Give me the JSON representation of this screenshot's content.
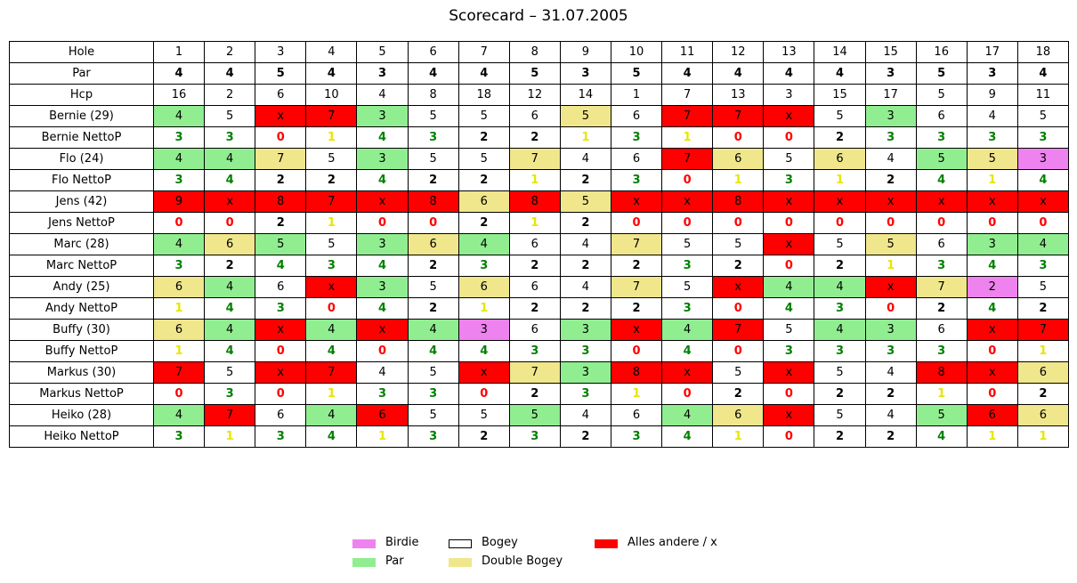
{
  "title": "Scorecard – 31.07.2005",
  "colors": {
    "Birdie": "#ee82ee",
    "Par": "#90ee90",
    "Bogey": "#ffffff",
    "Double Bogey": "#f0e68c",
    "Alles andere / x": "#ff0000",
    "netto": {
      "0": "#ff0000",
      "1": "#e6e600",
      "2": "#000000",
      "3": "#008000",
      "4": "#008000"
    }
  },
  "legend": [
    {
      "label": "Birdie",
      "key": "Birdie"
    },
    {
      "label": "Par",
      "key": "Par"
    },
    {
      "label": "Bogey",
      "key": "Bogey"
    },
    {
      "label": "Double Bogey",
      "key": "Double Bogey"
    },
    {
      "label": "Alles andere / x",
      "key": "Alles andere / x"
    }
  ],
  "chart_data": {
    "type": "table",
    "title": "Scorecard – 31.07.2005",
    "header": {
      "label": "Hole",
      "values": [
        "1",
        "2",
        "3",
        "4",
        "5",
        "6",
        "7",
        "8",
        "9",
        "10",
        "11",
        "12",
        "13",
        "14",
        "15",
        "16",
        "17",
        "18"
      ]
    },
    "par": {
      "label": "Par",
      "values": [
        "4",
        "4",
        "5",
        "4",
        "3",
        "4",
        "4",
        "5",
        "3",
        "5",
        "4",
        "4",
        "4",
        "4",
        "3",
        "5",
        "3",
        "4"
      ]
    },
    "hcp": {
      "label": "Hcp",
      "values": [
        "16",
        "2",
        "6",
        "10",
        "4",
        "8",
        "18",
        "12",
        "14",
        "1",
        "7",
        "13",
        "3",
        "15",
        "17",
        "5",
        "9",
        "11"
      ]
    },
    "players": [
      {
        "name": "Bernie (29)",
        "strokes": [
          "4",
          "5",
          "x",
          "7",
          "3",
          "5",
          "5",
          "6",
          "5",
          "6",
          "7",
          "7",
          "x",
          "5",
          "3",
          "6",
          "4",
          "5"
        ],
        "cats": [
          "Par",
          "Bogey",
          "Alles andere / x",
          "Alles andere / x",
          "Par",
          "Bogey",
          "Bogey",
          "Bogey",
          "Double Bogey",
          "Bogey",
          "Alles andere / x",
          "Alles andere / x",
          "Alles andere / x",
          "Bogey",
          "Par",
          "Bogey",
          "Bogey",
          "Bogey"
        ],
        "netto_label": "Bernie NettoP",
        "netto": [
          "3",
          "3",
          "0",
          "1",
          "4",
          "3",
          "2",
          "2",
          "1",
          "3",
          "1",
          "0",
          "0",
          "2",
          "3",
          "3",
          "3",
          "3"
        ]
      },
      {
        "name": "Flo (24)",
        "strokes": [
          "4",
          "4",
          "7",
          "5",
          "3",
          "5",
          "5",
          "7",
          "4",
          "6",
          "7",
          "6",
          "5",
          "6",
          "4",
          "5",
          "5",
          "3"
        ],
        "cats": [
          "Par",
          "Par",
          "Double Bogey",
          "Bogey",
          "Par",
          "Bogey",
          "Bogey",
          "Double Bogey",
          "Bogey",
          "Bogey",
          "Alles andere / x",
          "Double Bogey",
          "Bogey",
          "Double Bogey",
          "Bogey",
          "Par",
          "Double Bogey",
          "Birdie"
        ],
        "netto_label": "Flo NettoP",
        "netto": [
          "3",
          "4",
          "2",
          "2",
          "4",
          "2",
          "2",
          "1",
          "2",
          "3",
          "0",
          "1",
          "3",
          "1",
          "2",
          "4",
          "1",
          "4"
        ]
      },
      {
        "name": "Jens (42)",
        "strokes": [
          "9",
          "x",
          "8",
          "7",
          "x",
          "8",
          "6",
          "8",
          "5",
          "x",
          "x",
          "8",
          "x",
          "x",
          "x",
          "x",
          "x",
          "x"
        ],
        "cats": [
          "Alles andere / x",
          "Alles andere / x",
          "Alles andere / x",
          "Alles andere / x",
          "Alles andere / x",
          "Alles andere / x",
          "Double Bogey",
          "Alles andere / x",
          "Double Bogey",
          "Alles andere / x",
          "Alles andere / x",
          "Alles andere / x",
          "Alles andere / x",
          "Alles andere / x",
          "Alles andere / x",
          "Alles andere / x",
          "Alles andere / x",
          "Alles andere / x"
        ],
        "netto_label": "Jens NettoP",
        "netto": [
          "0",
          "0",
          "2",
          "1",
          "0",
          "0",
          "2",
          "1",
          "2",
          "0",
          "0",
          "0",
          "0",
          "0",
          "0",
          "0",
          "0",
          "0"
        ]
      },
      {
        "name": "Marc (28)",
        "strokes": [
          "4",
          "6",
          "5",
          "5",
          "3",
          "6",
          "4",
          "6",
          "4",
          "7",
          "5",
          "5",
          "x",
          "5",
          "5",
          "6",
          "3",
          "4"
        ],
        "cats": [
          "Par",
          "Double Bogey",
          "Par",
          "Bogey",
          "Par",
          "Double Bogey",
          "Par",
          "Bogey",
          "Bogey",
          "Double Bogey",
          "Bogey",
          "Bogey",
          "Alles andere / x",
          "Bogey",
          "Double Bogey",
          "Bogey",
          "Par",
          "Par"
        ],
        "netto_label": "Marc NettoP",
        "netto": [
          "3",
          "2",
          "4",
          "3",
          "4",
          "2",
          "3",
          "2",
          "2",
          "2",
          "3",
          "2",
          "0",
          "2",
          "1",
          "3",
          "4",
          "3"
        ]
      },
      {
        "name": "Andy (25)",
        "strokes": [
          "6",
          "4",
          "6",
          "x",
          "3",
          "5",
          "6",
          "6",
          "4",
          "7",
          "5",
          "x",
          "4",
          "4",
          "x",
          "7",
          "2",
          "5"
        ],
        "cats": [
          "Double Bogey",
          "Par",
          "Bogey",
          "Alles andere / x",
          "Par",
          "Bogey",
          "Double Bogey",
          "Bogey",
          "Bogey",
          "Double Bogey",
          "Bogey",
          "Alles andere / x",
          "Par",
          "Par",
          "Alles andere / x",
          "Double Bogey",
          "Birdie",
          "Bogey"
        ],
        "netto_label": "Andy NettoP",
        "netto": [
          "1",
          "4",
          "3",
          "0",
          "4",
          "2",
          "1",
          "2",
          "2",
          "2",
          "3",
          "0",
          "4",
          "3",
          "0",
          "2",
          "4",
          "2"
        ]
      },
      {
        "name": "Buffy (30)",
        "strokes": [
          "6",
          "4",
          "x",
          "4",
          "x",
          "4",
          "3",
          "6",
          "3",
          "x",
          "4",
          "7",
          "5",
          "4",
          "3",
          "6",
          "x",
          "7"
        ],
        "cats": [
          "Double Bogey",
          "Par",
          "Alles andere / x",
          "Par",
          "Alles andere / x",
          "Par",
          "Birdie",
          "Bogey",
          "Par",
          "Alles andere / x",
          "Par",
          "Alles andere / x",
          "Bogey",
          "Par",
          "Par",
          "Bogey",
          "Alles andere / x",
          "Alles andere / x"
        ],
        "netto_label": "Buffy NettoP",
        "netto": [
          "1",
          "4",
          "0",
          "4",
          "0",
          "4",
          "4",
          "3",
          "3",
          "0",
          "4",
          "0",
          "3",
          "3",
          "3",
          "3",
          "0",
          "1"
        ]
      },
      {
        "name": "Markus (30)",
        "strokes": [
          "7",
          "5",
          "x",
          "7",
          "4",
          "5",
          "x",
          "7",
          "3",
          "8",
          "x",
          "5",
          "x",
          "5",
          "4",
          "8",
          "x",
          "6"
        ],
        "cats": [
          "Alles andere / x",
          "Bogey",
          "Alles andere / x",
          "Alles andere / x",
          "Bogey",
          "Bogey",
          "Alles andere / x",
          "Double Bogey",
          "Par",
          "Alles andere / x",
          "Alles andere / x",
          "Bogey",
          "Alles andere / x",
          "Bogey",
          "Bogey",
          "Alles andere / x",
          "Alles andere / x",
          "Double Bogey"
        ],
        "netto_label": "Markus NettoP",
        "netto": [
          "0",
          "3",
          "0",
          "1",
          "3",
          "3",
          "0",
          "2",
          "3",
          "1",
          "0",
          "2",
          "0",
          "2",
          "2",
          "1",
          "0",
          "2"
        ]
      },
      {
        "name": "Heiko (28)",
        "strokes": [
          "4",
          "7",
          "6",
          "4",
          "6",
          "5",
          "5",
          "5",
          "4",
          "6",
          "4",
          "6",
          "x",
          "5",
          "4",
          "5",
          "6",
          "6"
        ],
        "cats": [
          "Par",
          "Alles andere / x",
          "Bogey",
          "Par",
          "Alles andere / x",
          "Bogey",
          "Bogey",
          "Par",
          "Bogey",
          "Bogey",
          "Par",
          "Double Bogey",
          "Alles andere / x",
          "Bogey",
          "Bogey",
          "Par",
          "Alles andere / x",
          "Double Bogey"
        ],
        "netto_label": "Heiko NettoP",
        "netto": [
          "3",
          "1",
          "3",
          "4",
          "1",
          "3",
          "2",
          "3",
          "2",
          "3",
          "4",
          "1",
          "0",
          "2",
          "2",
          "4",
          "1",
          "1"
        ]
      }
    ]
  }
}
